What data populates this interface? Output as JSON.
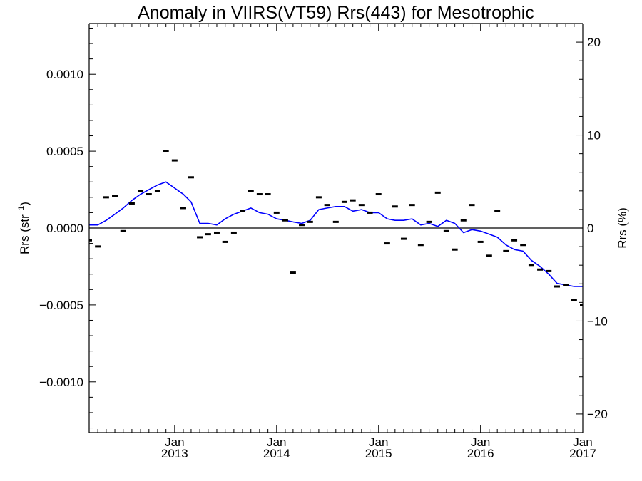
{
  "chart_data": {
    "type": "line",
    "title": "Anomaly in VIIRS(VT59) Rrs(443) for Mesotrophic",
    "ylabel_left": {
      "base": "Rrs (str",
      "sup": "−1",
      "close": ")"
    },
    "ylabel_right": "Rrs (%)",
    "xlim": [
      "2012-03-01",
      "2017-01-01"
    ],
    "ylim_left": [
      -0.00133,
      0.00133
    ],
    "ylim_right": [
      -22,
      22
    ],
    "left_ticks": [
      {
        "value": 0.001,
        "label": "0.0010"
      },
      {
        "value": 0.0005,
        "label": "0.0005"
      },
      {
        "value": 0.0,
        "label": "0.0000"
      },
      {
        "value": -0.0005,
        "label": "−0.0005"
      },
      {
        "value": -0.001,
        "label": "−0.0010"
      }
    ],
    "right_ticks": [
      {
        "value": 20,
        "label": "20"
      },
      {
        "value": 10,
        "label": "10"
      },
      {
        "value": 0,
        "label": "0"
      },
      {
        "value": -10,
        "label": "−10"
      },
      {
        "value": -20,
        "label": "−20"
      }
    ],
    "x_ticks": [
      {
        "date": "2013-01-01",
        "month": "Jan",
        "year": "2013"
      },
      {
        "date": "2014-01-01",
        "month": "Jan",
        "year": "2014"
      },
      {
        "date": "2015-01-01",
        "month": "Jan",
        "year": "2015"
      },
      {
        "date": "2016-01-01",
        "month": "Jan",
        "year": "2016"
      },
      {
        "date": "2017-01-01",
        "month": "Jan",
        "year": "2017"
      }
    ],
    "zero_line": true,
    "series": [
      {
        "kind": "markers",
        "color": "#000000",
        "x": [
          "2012-03-01",
          "2012-04-01",
          "2012-05-01",
          "2012-06-01",
          "2012-07-01",
          "2012-08-01",
          "2012-09-01",
          "2012-10-01",
          "2012-11-01",
          "2012-12-01",
          "2013-01-01",
          "2013-02-01",
          "2013-03-01",
          "2013-04-01",
          "2013-05-01",
          "2013-06-01",
          "2013-07-01",
          "2013-08-01",
          "2013-09-01",
          "2013-10-01",
          "2013-11-01",
          "2013-12-01",
          "2014-01-01",
          "2014-02-01",
          "2014-03-01",
          "2014-04-01",
          "2014-05-01",
          "2014-06-01",
          "2014-07-01",
          "2014-08-01",
          "2014-09-01",
          "2014-10-01",
          "2014-11-01",
          "2014-12-01",
          "2015-01-01",
          "2015-02-01",
          "2015-03-01",
          "2015-04-01",
          "2015-05-01",
          "2015-06-01",
          "2015-07-01",
          "2015-08-01",
          "2015-09-01",
          "2015-10-01",
          "2015-11-01",
          "2015-12-01",
          "2016-01-01",
          "2016-02-01",
          "2016-03-01",
          "2016-04-01",
          "2016-05-01",
          "2016-06-01",
          "2016-07-01",
          "2016-08-01",
          "2016-09-01",
          "2016-10-01",
          "2016-11-01",
          "2016-12-01",
          "2017-01-01"
        ],
        "y": [
          -8e-05,
          -0.00012,
          0.0002,
          0.00021,
          -2e-05,
          0.00016,
          0.00024,
          0.00022,
          0.00024,
          0.0005,
          0.00044,
          0.00013,
          0.00033,
          -6e-05,
          -4e-05,
          -3e-05,
          -9e-05,
          -3e-05,
          0.00011,
          0.00024,
          0.00022,
          0.00022,
          0.0001,
          5e-05,
          -0.00029,
          2e-05,
          4e-05,
          0.0002,
          0.00015,
          4e-05,
          0.00017,
          0.00018,
          0.00015,
          0.0001,
          0.00022,
          -0.0001,
          0.00014,
          -7e-05,
          0.00015,
          -0.00011,
          4e-05,
          0.00023,
          -2e-05,
          -0.00014,
          5e-05,
          0.00015,
          -9e-05,
          -0.00018,
          0.00011,
          -0.00015,
          -8e-05,
          -0.00011,
          -0.00024,
          -0.00027,
          -0.00028,
          -0.00038,
          -0.00037,
          -0.00047,
          -0.0005
        ]
      },
      {
        "kind": "line",
        "color": "#0000ff",
        "x": [
          "2012-03-01",
          "2012-04-01",
          "2012-05-01",
          "2012-06-01",
          "2012-07-01",
          "2012-08-01",
          "2012-09-01",
          "2012-10-01",
          "2012-11-01",
          "2012-12-01",
          "2013-01-01",
          "2013-02-01",
          "2013-03-01",
          "2013-04-01",
          "2013-05-01",
          "2013-06-01",
          "2013-07-01",
          "2013-08-01",
          "2013-09-01",
          "2013-10-01",
          "2013-11-01",
          "2013-12-01",
          "2014-01-01",
          "2014-02-01",
          "2014-03-01",
          "2014-04-01",
          "2014-05-01",
          "2014-06-01",
          "2014-07-01",
          "2014-08-01",
          "2014-09-01",
          "2014-10-01",
          "2014-11-01",
          "2014-12-01",
          "2015-01-01",
          "2015-02-01",
          "2015-03-01",
          "2015-04-01",
          "2015-05-01",
          "2015-06-01",
          "2015-07-01",
          "2015-08-01",
          "2015-09-01",
          "2015-10-01",
          "2015-11-01",
          "2015-12-01",
          "2016-01-01",
          "2016-02-01",
          "2016-03-01",
          "2016-04-01",
          "2016-05-01",
          "2016-06-01",
          "2016-07-01",
          "2016-08-01",
          "2016-09-01",
          "2016-10-01",
          "2016-11-01",
          "2016-12-01",
          "2017-01-01"
        ],
        "y": [
          2e-05,
          2e-05,
          5e-05,
          9e-05,
          0.00013,
          0.00018,
          0.00022,
          0.00025,
          0.00028,
          0.0003,
          0.00026,
          0.00022,
          0.00017,
          3e-05,
          3e-05,
          2e-05,
          6e-05,
          9e-05,
          0.00011,
          0.00013,
          0.0001,
          9e-05,
          6e-05,
          5e-05,
          4e-05,
          3e-05,
          5e-05,
          0.00012,
          0.00013,
          0.00014,
          0.00014,
          0.00011,
          0.00012,
          0.0001,
          0.0001,
          6e-05,
          5e-05,
          5e-05,
          6e-05,
          2e-05,
          3e-05,
          1e-05,
          5e-05,
          3e-05,
          -3e-05,
          -1e-05,
          -2e-05,
          -4e-05,
          -6e-05,
          -0.00011,
          -0.00014,
          -0.00015,
          -0.00021,
          -0.00025,
          -0.0003,
          -0.00036,
          -0.00037,
          -0.00038,
          -0.00038
        ]
      }
    ]
  }
}
